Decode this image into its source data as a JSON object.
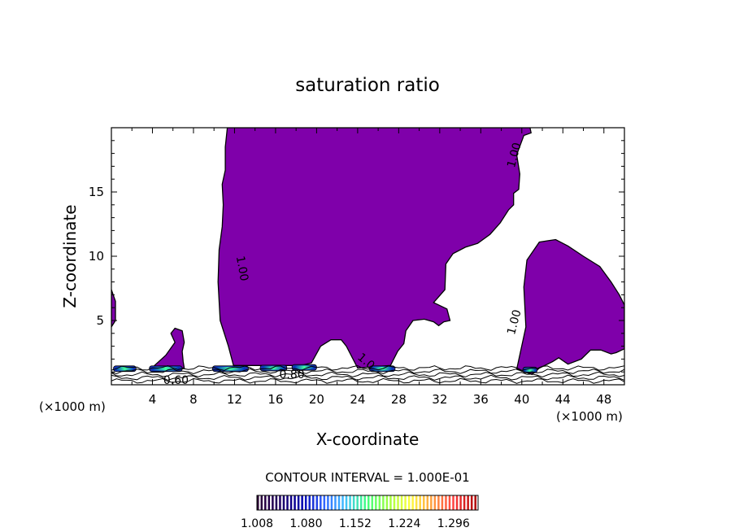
{
  "chart_data": {
    "type": "contour",
    "title": "saturation ratio",
    "xlabel": "X-coordinate",
    "ylabel": "Z-coordinate",
    "x_unit_left": "(×1000 m)",
    "x_unit_right": "(×1000 m)",
    "xlim": [
      0,
      50
    ],
    "ylim": [
      0,
      20
    ],
    "x_ticks": [
      4,
      8,
      12,
      16,
      20,
      24,
      28,
      32,
      36,
      40,
      44,
      48
    ],
    "y_ticks": [
      5,
      10,
      15
    ],
    "fill_color": "#7f00aa",
    "contour_labels": [
      {
        "text": "1.00",
        "x": 12.4,
        "y": 9.0,
        "rot": 80
      },
      {
        "text": "1.00",
        "x": 39.6,
        "y": 4.8,
        "rot": -75
      },
      {
        "text": "1.00",
        "x": 39.6,
        "y": 17.8,
        "rot": -75
      },
      {
        "text": "1.0",
        "x": 24.6,
        "y": 1.6,
        "rot": 40
      },
      {
        "text": "0.80",
        "x": 17.6,
        "y": 0.5,
        "rot": 0
      },
      {
        "text": "0.60",
        "x": 6.3,
        "y": 0.05,
        "rot": 0
      }
    ],
    "contour_interval_label": "CONTOUR INTERVAL = 1.000E-01",
    "colorbar": {
      "labels": [
        "1.008",
        "1.080",
        "1.152",
        "1.224",
        "1.296"
      ],
      "min": 1.008,
      "max": 1.332,
      "colors": [
        "#2a0033",
        "#200060",
        "#0000aa",
        "#3060ff",
        "#40c0ff",
        "#40ff80",
        "#a0ff40",
        "#ffff40",
        "#ffa040",
        "#ff4040",
        "#b00000"
      ]
    },
    "regions": [
      {
        "name": "main-plume",
        "points": [
          [
            11.3,
            20
          ],
          [
            20,
            20
          ],
          [
            30.5,
            20
          ],
          [
            40.8,
            20
          ],
          [
            40.9,
            19.6
          ],
          [
            40.2,
            19.4
          ],
          [
            39.5,
            17.9
          ],
          [
            39.8,
            16.4
          ],
          [
            39.7,
            15.2
          ],
          [
            39.2,
            14.9
          ],
          [
            39.2,
            14
          ],
          [
            38.7,
            13.6
          ],
          [
            37.9,
            12.6
          ],
          [
            36.9,
            11.7
          ],
          [
            35.7,
            11
          ],
          [
            34.5,
            10.7
          ],
          [
            33.3,
            10.2
          ],
          [
            32.6,
            9.4
          ],
          [
            32.5,
            7.4
          ],
          [
            31.4,
            6.4
          ],
          [
            32.7,
            5.9
          ],
          [
            33,
            5
          ],
          [
            32.4,
            4.9
          ],
          [
            31.9,
            4.6
          ],
          [
            31.4,
            4.9
          ],
          [
            30.5,
            5.1
          ],
          [
            29.4,
            5
          ],
          [
            28.7,
            4.2
          ],
          [
            28.5,
            3.2
          ],
          [
            27.9,
            2.6
          ],
          [
            27.2,
            1.5
          ],
          [
            24,
            1.3
          ],
          [
            22.9,
            3
          ],
          [
            22.4,
            3.5
          ],
          [
            21.4,
            3.5
          ],
          [
            20.4,
            3
          ],
          [
            19.5,
            1.7
          ],
          [
            18.5,
            1.5
          ],
          [
            11.9,
            1.5
          ],
          [
            11.4,
            3
          ],
          [
            10.6,
            5
          ],
          [
            10.4,
            8
          ],
          [
            10.5,
            10.5
          ],
          [
            10.8,
            12.3
          ],
          [
            10.9,
            14
          ],
          [
            10.8,
            15.6
          ],
          [
            11.1,
            16.7
          ],
          [
            11.1,
            18.5
          ],
          [
            11.3,
            20
          ]
        ]
      },
      {
        "name": "right-blob",
        "points": [
          [
            39.5,
            1.2
          ],
          [
            40.4,
            4.5
          ],
          [
            40.2,
            7.6
          ],
          [
            40.5,
            9.7
          ],
          [
            41.7,
            11.1
          ],
          [
            42.5,
            11.2
          ],
          [
            43.3,
            11.3
          ],
          [
            44.5,
            10.8
          ],
          [
            46,
            10
          ],
          [
            47.6,
            9.2
          ],
          [
            48.7,
            8
          ],
          [
            49.5,
            7
          ],
          [
            50,
            6.2
          ],
          [
            50,
            2.8
          ],
          [
            49.2,
            2.5
          ],
          [
            48.7,
            2.4
          ],
          [
            47.7,
            2.7
          ],
          [
            46.7,
            2.7
          ],
          [
            45.8,
            2
          ],
          [
            44.5,
            1.6
          ],
          [
            43.6,
            2.1
          ],
          [
            43,
            1.8
          ],
          [
            41.7,
            1.3
          ],
          [
            41,
            0.8
          ],
          [
            39.5,
            1.2
          ]
        ]
      },
      {
        "name": "left-edge",
        "points": [
          [
            0,
            7.4
          ],
          [
            0.4,
            6.5
          ],
          [
            0.4,
            5
          ],
          [
            0,
            4.5
          ]
        ]
      },
      {
        "name": "left-hump",
        "points": [
          [
            4.2,
            1.5
          ],
          [
            5.3,
            2.3
          ],
          [
            6.2,
            3.3
          ],
          [
            5.8,
            4
          ],
          [
            6.2,
            4.4
          ],
          [
            6.9,
            4.2
          ],
          [
            7.1,
            3.3
          ],
          [
            6.9,
            2.6
          ],
          [
            7,
            1.8
          ],
          [
            7.1,
            1.3
          ],
          [
            4.2,
            1.3
          ]
        ]
      }
    ],
    "surface_contours": [
      0.3,
      0.55,
      0.8,
      1.05,
      1.3
    ],
    "supersaturated_spots": [
      {
        "x": 5.3,
        "z": 1.25,
        "w": 3.2,
        "level": 1.12
      },
      {
        "x": 11.6,
        "z": 1.25,
        "w": 3.5,
        "level": 1.06
      },
      {
        "x": 15.8,
        "z": 1.3,
        "w": 2.6,
        "level": 1.16
      },
      {
        "x": 18.8,
        "z": 1.35,
        "w": 2.4,
        "level": 1.15
      },
      {
        "x": 26.4,
        "z": 1.25,
        "w": 2.5,
        "level": 1.12
      },
      {
        "x": 40.8,
        "z": 1.15,
        "w": 1.4,
        "level": 1.04
      },
      {
        "x": 1.3,
        "z": 1.25,
        "w": 2.2,
        "level": 1.03
      }
    ]
  }
}
